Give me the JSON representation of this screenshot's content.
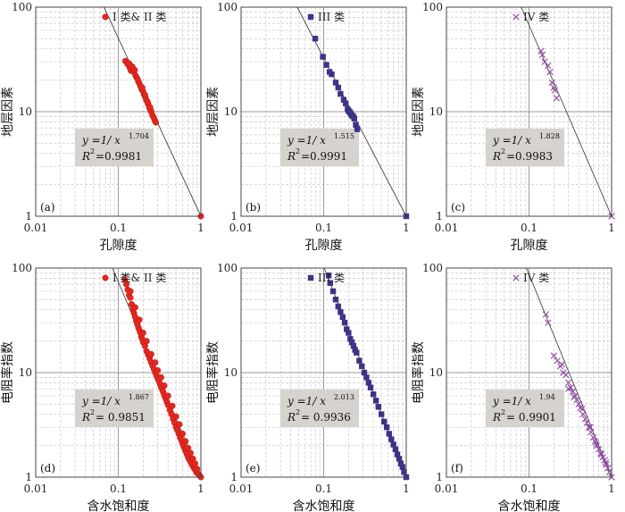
{
  "colors": {
    "red": "#e5261f",
    "red_edge": "#b31c15",
    "blue": "#3b3486",
    "purple": "#8e4a9f",
    "eq_box": "#d6d2cd",
    "grid": "#c8c8c8",
    "fit_line": "#444444"
  },
  "chart_data": [
    {
      "type": "scatter",
      "panel": "(a)",
      "xlabel": "孔隙度",
      "ylabel": "地层因素",
      "x_scale": "log",
      "y_scale": "log",
      "xlim": [
        0.01,
        1
      ],
      "ylim": [
        1,
        100
      ],
      "xticks": [
        "0.01",
        "0.1",
        "1"
      ],
      "yticks": [
        "1",
        "10",
        "100"
      ],
      "legend": "I 类& II 类",
      "marker": "circle",
      "color": "#e5261f",
      "equation": {
        "prefix": "y =1/ x",
        "exponent": "1.704",
        "r2_label": "R",
        "r2_value": "=0.9981"
      },
      "fit": {
        "a": 1,
        "b": 1.704
      },
      "series": [
        {
          "x": [
            0.122,
            0.13,
            0.138,
            0.142,
            0.148,
            0.155,
            0.162,
            0.168,
            0.175,
            0.18,
            0.186,
            0.192,
            0.198,
            0.205,
            0.212,
            0.218,
            0.224,
            0.23,
            0.238,
            0.245,
            0.252,
            0.26,
            0.268,
            0.276,
            0.285,
            1.0,
            0.135,
            0.158,
            0.171,
            0.195,
            0.21,
            0.228,
            0.243
          ],
          "y": [
            30.5,
            28.4,
            26.2,
            24.7,
            27.0,
            23.8,
            22.1,
            21.0,
            19.5,
            18.6,
            17.5,
            16.3,
            15.8,
            14.6,
            13.8,
            13.0,
            12.5,
            11.8,
            10.9,
            10.4,
            9.9,
            9.2,
            8.8,
            8.3,
            7.9,
            1.0,
            29.0,
            25.0,
            20.5,
            17.0,
            14.5,
            12.2,
            11.0
          ]
        }
      ]
    },
    {
      "type": "scatter",
      "panel": "(b)",
      "xlabel": "孔隙度",
      "ylabel": "地层因素",
      "x_scale": "log",
      "y_scale": "log",
      "xlim": [
        0.01,
        1
      ],
      "ylim": [
        1,
        100
      ],
      "xticks": [
        "0.01",
        "0.1",
        "1"
      ],
      "yticks": [
        "1",
        "10",
        "100"
      ],
      "legend": "III 类",
      "marker": "square",
      "color": "#3b3486",
      "equation": {
        "prefix": "y =1/ x",
        "exponent": "1.515",
        "r2_label": "R",
        "r2_value": "=0.9991"
      },
      "fit": {
        "a": 1,
        "b": 1.515
      },
      "series": [
        {
          "x": [
            0.079,
            0.098,
            0.108,
            0.118,
            0.125,
            0.14,
            0.15,
            0.16,
            0.175,
            0.185,
            0.195,
            0.2,
            0.205,
            0.21,
            0.215,
            0.22,
            0.228,
            0.235,
            0.245,
            0.255,
            1.0
          ],
          "y": [
            50.0,
            33.5,
            28.0,
            24.0,
            22.8,
            19.0,
            17.0,
            14.8,
            13.0,
            12.0,
            10.6,
            10.2,
            10.0,
            9.8,
            9.4,
            9.2,
            9.0,
            8.6,
            7.5,
            6.8,
            1.0
          ]
        }
      ]
    },
    {
      "type": "scatter",
      "panel": "(c)",
      "xlabel": "孔隙度",
      "ylabel": "地层因素",
      "x_scale": "log",
      "y_scale": "log",
      "xlim": [
        0.01,
        1
      ],
      "ylim": [
        1,
        100
      ],
      "xticks": [
        "0.01",
        "0.1",
        "1"
      ],
      "yticks": [
        "1",
        "10",
        "100"
      ],
      "legend": "IV 类",
      "marker": "x",
      "color": "#8e4a9f",
      "equation": {
        "prefix": "y =1/ x",
        "exponent": "1.828",
        "r2_label": "R",
        "r2_value": "=0.9983"
      },
      "fit": {
        "a": 1,
        "b": 1.828
      },
      "series": [
        {
          "x": [
            0.14,
            0.145,
            0.155,
            0.17,
            0.18,
            0.19,
            0.2,
            0.205,
            0.215,
            1.0
          ],
          "y": [
            38.0,
            35.0,
            30.0,
            27.5,
            24.0,
            19.0,
            17.0,
            16.0,
            13.5,
            1.0
          ]
        }
      ]
    },
    {
      "type": "scatter",
      "panel": "(d)",
      "xlabel": "含水饱和度",
      "ylabel": "电阻率指数",
      "x_scale": "log",
      "y_scale": "log",
      "xlim": [
        0.01,
        1
      ],
      "ylim": [
        1,
        100
      ],
      "xticks": [
        "0.01",
        "0.1",
        "1"
      ],
      "yticks": [
        "1",
        "10",
        "100"
      ],
      "legend": "I 类& II 类",
      "marker": "circle",
      "color": "#e5261f",
      "equation": {
        "prefix": "y =1/ x",
        "exponent": "1.867",
        "r2_label": "R",
        "r2_value": "= 0.9851"
      },
      "fit": {
        "a": 1,
        "b": 1.867
      },
      "series": [
        {
          "x": [
            0.12,
            0.125,
            0.13,
            0.135,
            0.14,
            0.145,
            0.15,
            0.155,
            0.16,
            0.165,
            0.17,
            0.175,
            0.18,
            0.185,
            0.19,
            0.195,
            0.2,
            0.21,
            0.22,
            0.23,
            0.24,
            0.25,
            0.26,
            0.27,
            0.28,
            0.29,
            0.3,
            0.31,
            0.32,
            0.33,
            0.34,
            0.35,
            0.36,
            0.37,
            0.38,
            0.39,
            0.4,
            0.42,
            0.44,
            0.46,
            0.48,
            0.5,
            0.52,
            0.54,
            0.56,
            0.58,
            0.6,
            0.62,
            0.64,
            0.66,
            0.68,
            0.7,
            0.72,
            0.75,
            0.78,
            0.8,
            0.82,
            0.85,
            0.88,
            0.9,
            0.93,
            0.95,
            0.97,
            1.0,
            0.14,
            0.16,
            0.18,
            0.2,
            0.22,
            0.25,
            0.28,
            0.3,
            0.33,
            0.36,
            0.4,
            0.45,
            0.5,
            0.55,
            0.6,
            0.65,
            0.7,
            0.75,
            0.8,
            0.85,
            0.9
          ],
          "y": [
            78.0,
            70.0,
            62.0,
            55.0,
            52.0,
            45.0,
            40.0,
            37.0,
            34.0,
            31.0,
            29.0,
            27.0,
            25.5,
            24.0,
            22.0,
            21.0,
            19.5,
            18.0,
            16.0,
            14.8,
            13.6,
            12.5,
            11.6,
            10.8,
            10.0,
            9.4,
            8.8,
            8.3,
            7.8,
            7.3,
            6.9,
            6.5,
            6.1,
            5.8,
            5.5,
            5.2,
            4.9,
            4.4,
            4.0,
            3.6,
            3.3,
            3.0,
            2.8,
            2.6,
            2.4,
            2.25,
            2.1,
            1.95,
            1.85,
            1.75,
            1.65,
            1.55,
            1.48,
            1.4,
            1.32,
            1.28,
            1.23,
            1.18,
            1.12,
            1.1,
            1.07,
            1.05,
            1.03,
            1.0,
            60.0,
            42.0,
            32.0,
            24.0,
            20.0,
            15.0,
            12.5,
            10.5,
            9.0,
            7.5,
            6.0,
            4.8,
            3.8,
            3.2,
            2.6,
            2.2,
            1.9,
            1.7,
            1.5,
            1.35,
            1.2
          ]
        }
      ]
    },
    {
      "type": "scatter",
      "panel": "(e)",
      "xlabel": "含水饱和度",
      "ylabel": "电阻率指数",
      "x_scale": "log",
      "y_scale": "log",
      "xlim": [
        0.01,
        1
      ],
      "ylim": [
        1,
        100
      ],
      "xticks": [
        "0.01",
        "0.1",
        "1"
      ],
      "yticks": [
        "1",
        "10",
        "100"
      ],
      "legend": "III 类",
      "marker": "square",
      "color": "#3b3486",
      "equation": {
        "prefix": "y =1/ x",
        "exponent": "2.013",
        "r2_label": "R",
        "r2_value": "= 0.9936"
      },
      "fit": {
        "a": 1,
        "b": 2.013
      },
      "series": [
        {
          "x": [
            0.115,
            0.12,
            0.13,
            0.14,
            0.15,
            0.16,
            0.17,
            0.18,
            0.19,
            0.2,
            0.21,
            0.22,
            0.23,
            0.24,
            0.25,
            0.27,
            0.29,
            0.31,
            0.33,
            0.35,
            0.37,
            0.4,
            0.43,
            0.46,
            0.5,
            0.54,
            0.58,
            0.62,
            0.66,
            0.7,
            0.74,
            0.78,
            0.82,
            0.86,
            0.9,
            0.94,
            1.0
          ],
          "y": [
            85.0,
            72.0,
            60.0,
            50.0,
            43.0,
            38.0,
            34.0,
            30.0,
            26.0,
            24.0,
            21.0,
            19.5,
            18.0,
            16.5,
            15.5,
            13.0,
            11.5,
            10.0,
            9.0,
            8.0,
            7.2,
            6.2,
            5.4,
            4.7,
            4.0,
            3.4,
            3.0,
            2.6,
            2.3,
            2.05,
            1.85,
            1.65,
            1.5,
            1.35,
            1.25,
            1.12,
            1.0
          ]
        }
      ]
    },
    {
      "type": "scatter",
      "panel": "(f)",
      "xlabel": "含水饱和度",
      "ylabel": "电阻率指数",
      "x_scale": "log",
      "y_scale": "log",
      "xlim": [
        0.01,
        1
      ],
      "ylim": [
        1,
        100
      ],
      "xticks": [
        "0.01",
        "0.1",
        "1"
      ],
      "yticks": [
        "1",
        "10",
        "100"
      ],
      "legend": "IV 类",
      "marker": "x",
      "color": "#8e4a9f",
      "equation": {
        "prefix": "y =1/ x",
        "exponent": "1.94",
        "r2_label": "R",
        "r2_value": "= 0.9901"
      },
      "fit": {
        "a": 1,
        "b": 1.94
      },
      "series": [
        {
          "x": [
            0.16,
            0.17,
            0.2,
            0.22,
            0.24,
            0.26,
            0.28,
            0.3,
            0.32,
            0.34,
            0.36,
            0.38,
            0.4,
            0.42,
            0.45,
            0.48,
            0.5,
            0.53,
            0.56,
            0.6,
            0.63,
            0.66,
            0.7,
            0.74,
            0.78,
            0.82,
            0.86,
            0.9,
            0.94,
            1.0,
            0.25,
            0.3,
            0.35,
            0.44,
            0.55,
            0.65,
            0.75,
            0.85
          ],
          "y": [
            36.0,
            30.0,
            14.5,
            13.0,
            11.5,
            10.0,
            9.5,
            8.0,
            7.2,
            6.6,
            6.0,
            5.5,
            5.0,
            4.6,
            4.0,
            3.6,
            3.3,
            3.0,
            2.7,
            2.4,
            2.2,
            2.0,
            1.85,
            1.7,
            1.55,
            1.45,
            1.32,
            1.22,
            1.12,
            1.0,
            12.0,
            7.0,
            5.8,
            4.5,
            3.0,
            2.1,
            1.65,
            1.38
          ]
        }
      ]
    }
  ]
}
